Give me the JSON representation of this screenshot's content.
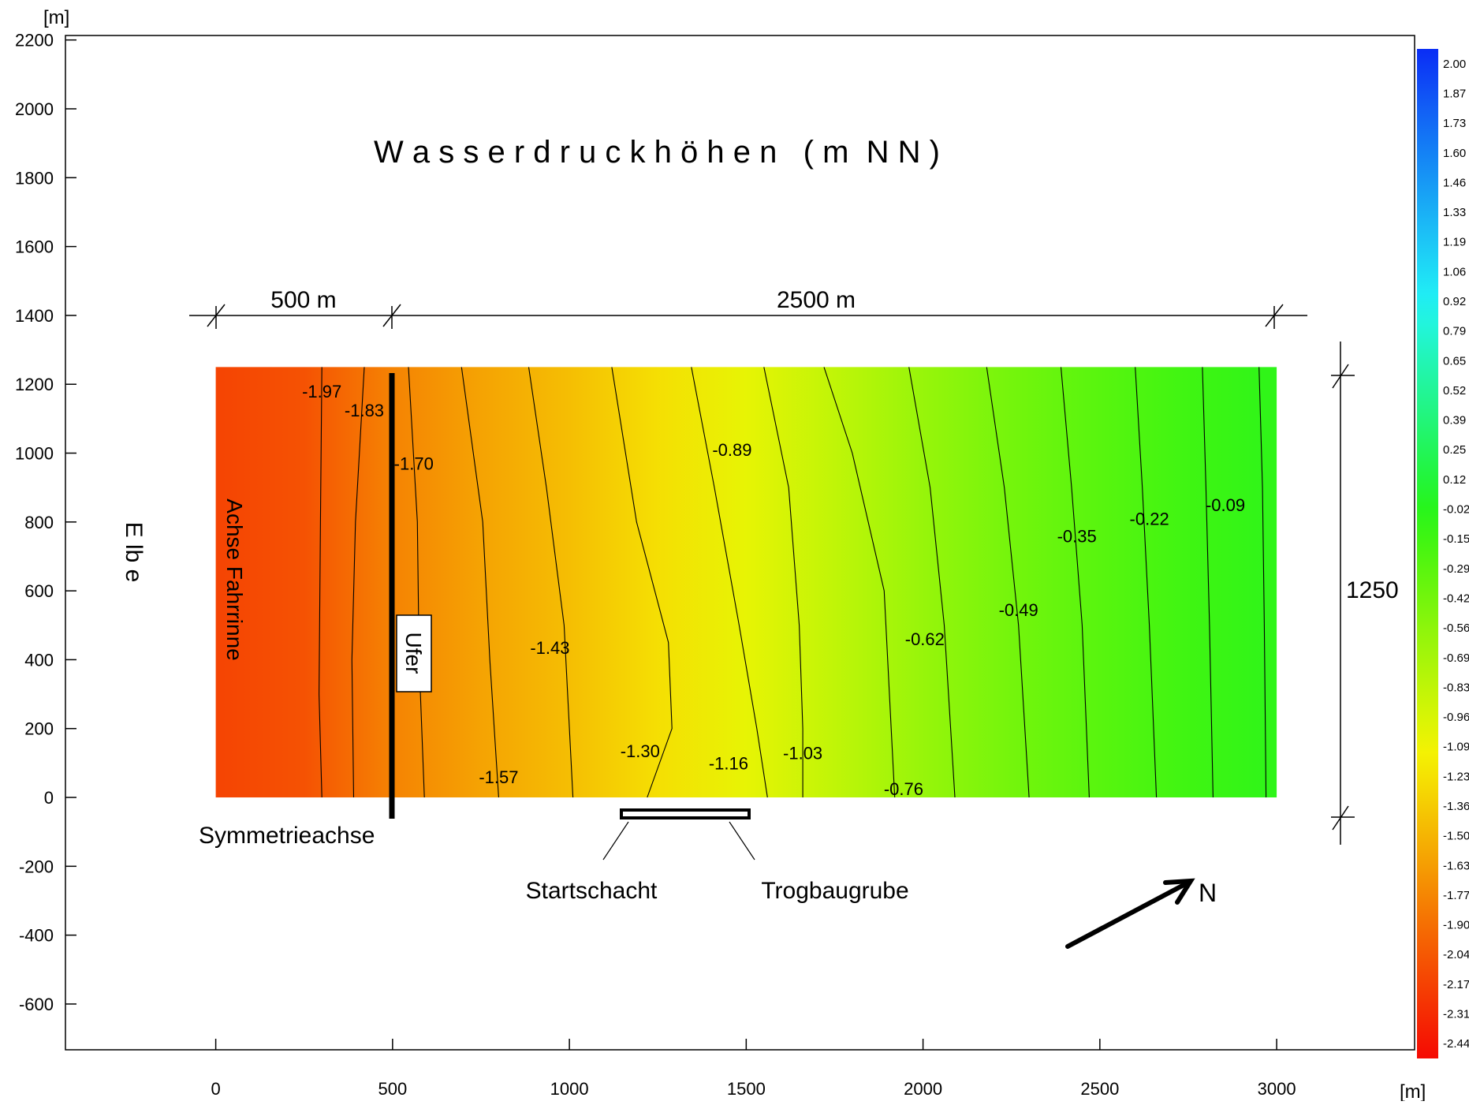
{
  "chart_data": {
    "type": "heatmap",
    "title": "W a s s e r d r u c k h ö h e n   ( m  N N )",
    "x_unit": "[m]",
    "y_unit": "[m]",
    "xlim": [
      -425,
      3390
    ],
    "ylim": [
      -733,
      2213
    ],
    "x_ticks": [
      0,
      500,
      1000,
      1500,
      2000,
      2500,
      3000
    ],
    "y_ticks": [
      2200,
      2000,
      1800,
      1600,
      1400,
      1200,
      1000,
      800,
      600,
      400,
      200,
      0,
      -200,
      -400,
      -600
    ],
    "domain": {
      "x": [
        0,
        3000
      ],
      "y": [
        0,
        1250
      ]
    },
    "surface_x": [
      0,
      250,
      500,
      750,
      1000,
      1250,
      1500,
      1750,
      2000,
      2250,
      2500,
      2750,
      3000
    ],
    "surface_values": [
      -2.1,
      -2.02,
      -1.74,
      -1.56,
      -1.4,
      -1.22,
      -1.02,
      -0.82,
      -0.6,
      -0.42,
      -0.28,
      -0.15,
      -0.06
    ],
    "isolines": [
      {
        "label": "-1.97",
        "points": [
          [
            300,
            1250
          ],
          [
            296,
            800
          ],
          [
            292,
            300
          ],
          [
            300,
            0
          ]
        ]
      },
      {
        "label": "-1.83",
        "points": [
          [
            420,
            1250
          ],
          [
            395,
            800
          ],
          [
            385,
            400
          ],
          [
            390,
            0
          ]
        ]
      },
      {
        "label": "-1.70",
        "points": [
          [
            545,
            1250
          ],
          [
            570,
            800
          ],
          [
            575,
            400
          ],
          [
            590,
            0
          ]
        ]
      },
      {
        "label": "-1.57",
        "points": [
          [
            695,
            1250
          ],
          [
            755,
            800
          ],
          [
            775,
            400
          ],
          [
            800,
            0
          ]
        ]
      },
      {
        "label": "-1.43",
        "points": [
          [
            885,
            1250
          ],
          [
            935,
            900
          ],
          [
            985,
            500
          ],
          [
            1010,
            0
          ]
        ]
      },
      {
        "label": "-1.30",
        "points": [
          [
            1120,
            1250
          ],
          [
            1190,
            800
          ],
          [
            1280,
            450
          ],
          [
            1290,
            200
          ],
          [
            1220,
            0
          ]
        ]
      },
      {
        "label": "-1.16",
        "points": [
          [
            1345,
            1250
          ],
          [
            1410,
            900
          ],
          [
            1480,
            500
          ],
          [
            1530,
            200
          ],
          [
            1560,
            0
          ]
        ]
      },
      {
        "label": "-1.03",
        "points": [
          [
            1550,
            1250
          ],
          [
            1620,
            900
          ],
          [
            1650,
            500
          ],
          [
            1660,
            200
          ],
          [
            1660,
            0
          ]
        ]
      },
      {
        "label": "-0.89",
        "points": [
          [
            1720,
            1250
          ],
          [
            1800,
            1000
          ],
          [
            1890,
            600
          ],
          [
            1910,
            200
          ],
          [
            1920,
            0
          ]
        ]
      },
      {
        "label": "-0.76",
        "points": [
          [
            1960,
            1250
          ],
          [
            2020,
            900
          ],
          [
            2060,
            500
          ],
          [
            2090,
            0
          ]
        ]
      },
      {
        "label": "-0.62",
        "points": [
          [
            2180,
            1250
          ],
          [
            2230,
            900
          ],
          [
            2270,
            500
          ],
          [
            2300,
            0
          ]
        ]
      },
      {
        "label": "-0.49",
        "points": [
          [
            2390,
            1250
          ],
          [
            2420,
            900
          ],
          [
            2450,
            500
          ],
          [
            2470,
            0
          ]
        ]
      },
      {
        "label": "-0.35",
        "points": [
          [
            2600,
            1250
          ],
          [
            2620,
            900
          ],
          [
            2640,
            500
          ],
          [
            2660,
            0
          ]
        ]
      },
      {
        "label": "-0.22",
        "points": [
          [
            2790,
            1250
          ],
          [
            2800,
            900
          ],
          [
            2810,
            500
          ],
          [
            2820,
            0
          ]
        ]
      },
      {
        "label": "-0.09",
        "points": [
          [
            2950,
            1250
          ],
          [
            2960,
            900
          ],
          [
            2965,
            500
          ],
          [
            2970,
            0
          ]
        ]
      }
    ],
    "contour_labels": [
      {
        "text": "-1.97",
        "x": 300,
        "y": 1180
      },
      {
        "text": "-1.83",
        "x": 420,
        "y": 1125
      },
      {
        "text": "-1.70",
        "x": 560,
        "y": 970
      },
      {
        "text": "-1.57",
        "x": 800,
        "y": 60
      },
      {
        "text": "-1.43",
        "x": 945,
        "y": 435
      },
      {
        "text": "-1.30",
        "x": 1200,
        "y": 135
      },
      {
        "text": "-1.16",
        "x": 1450,
        "y": 100
      },
      {
        "text": "-1.03",
        "x": 1660,
        "y": 130
      },
      {
        "text": "-0.89",
        "x": 1460,
        "y": 1010
      },
      {
        "text": "-0.76",
        "x": 1945,
        "y": 25
      },
      {
        "text": "-0.62",
        "x": 2005,
        "y": 460
      },
      {
        "text": "-0.49",
        "x": 2270,
        "y": 545
      },
      {
        "text": "-0.35",
        "x": 2435,
        "y": 760
      },
      {
        "text": "-0.22",
        "x": 2640,
        "y": 810
      },
      {
        "text": "-0.09",
        "x": 2855,
        "y": 850
      }
    ],
    "colorbar": {
      "labels": [
        "2.00",
        "1.87",
        "1.73",
        "1.60",
        "1.46",
        "1.33",
        "1.19",
        "1.06",
        "0.92",
        "0.79",
        "0.65",
        "0.52",
        "0.39",
        "0.25",
        "0.12",
        "-0.02",
        "-0.15",
        "-0.29",
        "-0.42",
        "-0.56",
        "-0.69",
        "-0.83",
        "-0.96",
        "-1.09",
        "-1.23",
        "-1.36",
        "-1.50",
        "-1.63",
        "-1.77",
        "-1.90",
        "-2.04",
        "-2.17",
        "-2.31",
        "-2.44"
      ],
      "colors": [
        "#0a2df5",
        "#0e46f5",
        "#1260f5",
        "#1378f5",
        "#1690f5",
        "#19a8f5",
        "#1cbff6",
        "#1ed6f6",
        "#20ecf5",
        "#22f5dc",
        "#22f5bb",
        "#22f59c",
        "#22f57d",
        "#22f55c",
        "#22f53c",
        "#27f51c",
        "#3ff512",
        "#5af50e",
        "#74f50c",
        "#8ff50b",
        "#a8f509",
        "#c2f507",
        "#dbf505",
        "#f4f203",
        "#f5dd03",
        "#f5c503",
        "#f5ae03",
        "#f59603",
        "#f57e03",
        "#f56603",
        "#f54f03",
        "#f53803",
        "#f52103",
        "#f50a03"
      ]
    },
    "annotations": {
      "dim_left": "500 m",
      "dim_right": "2500 m",
      "dim_height": "1250",
      "elbe": "E lb e",
      "achse": "Achse Fahrrinne",
      "ufer": "Ufer",
      "symmetrie": "Symmetrieachse",
      "startschacht": "Startschacht",
      "trogbaugrube": "Trogbaugrube",
      "north": "N"
    }
  }
}
